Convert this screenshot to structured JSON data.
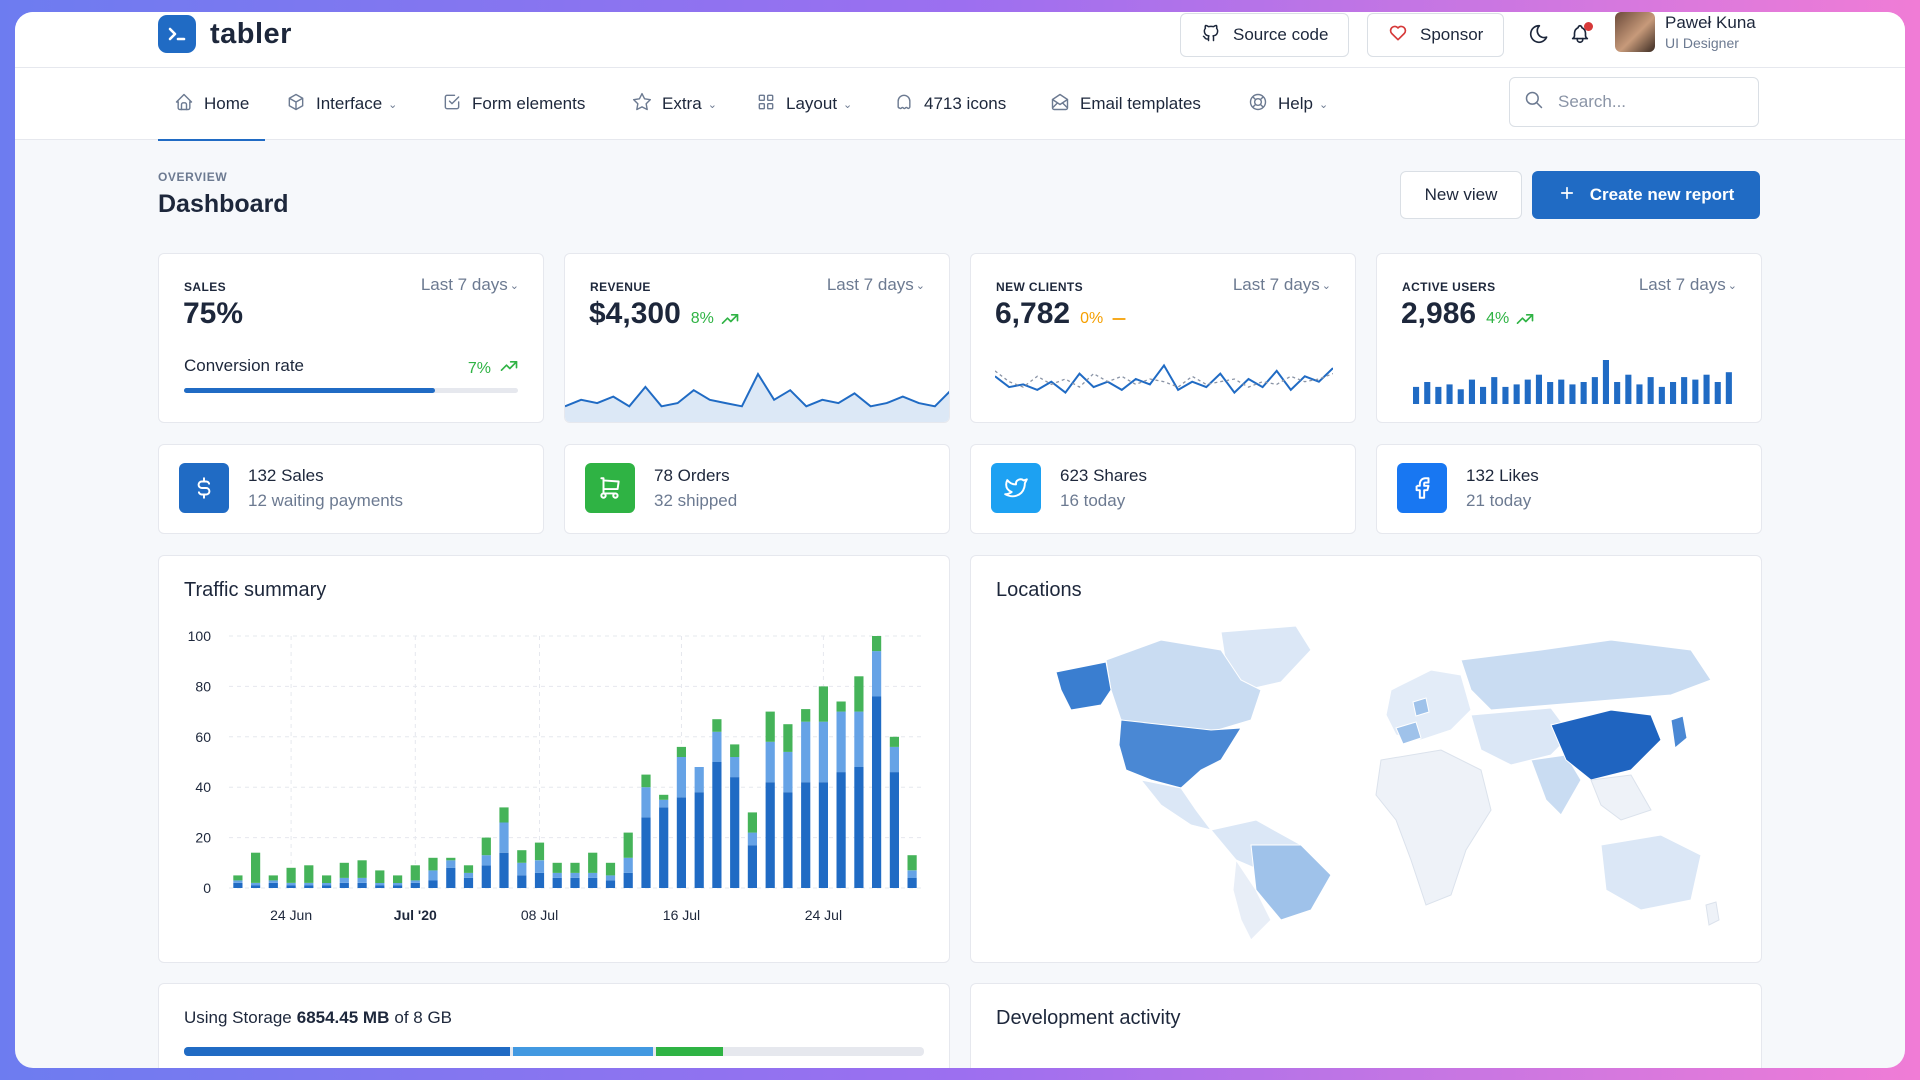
{
  "header": {
    "logo_text": "tabler",
    "source_code_label": "Source code",
    "sponsor_label": "Sponsor",
    "user_name": "Paweł Kuna",
    "user_role": "UI Designer"
  },
  "nav": {
    "items": [
      {
        "label": "Home",
        "icon": "home-icon"
      },
      {
        "label": "Interface",
        "icon": "package-icon"
      },
      {
        "label": "Form elements",
        "icon": "checkbox-icon"
      },
      {
        "label": "Extra",
        "icon": "star-icon"
      },
      {
        "label": "Layout",
        "icon": "layout-grid-icon"
      },
      {
        "label": "4713 icons",
        "icon": "ghost-icon"
      },
      {
        "label": "Email templates",
        "icon": "mail-opened-icon"
      },
      {
        "label": "Help",
        "icon": "lifebuoy-icon"
      }
    ],
    "search_placeholder": "Search..."
  },
  "page": {
    "pretitle": "OVERVIEW",
    "title": "Dashboard",
    "new_view_label": "New view",
    "create_report_label": "Create new report"
  },
  "kpis": [
    {
      "label": "SALES",
      "range": "Last 7 days",
      "value": "75%",
      "sub_label": "Conversion rate",
      "sub_value": "7%",
      "progress": 0.75
    },
    {
      "label": "REVENUE",
      "range": "Last 7 days",
      "value": "$4,300",
      "trend": "8%"
    },
    {
      "label": "NEW CLIENTS",
      "range": "Last 7 days",
      "value": "6,782",
      "trend": "0%"
    },
    {
      "label": "ACTIVE USERS",
      "range": "Last 7 days",
      "value": "2,986",
      "trend": "4%"
    }
  ],
  "mini_stats": [
    {
      "line1": "132 Sales",
      "line2": "12 waiting payments",
      "icon": "currency-dollar-icon",
      "color": "#206bc4"
    },
    {
      "line1": "78 Orders",
      "line2": "32 shipped",
      "icon": "shopping-cart-icon",
      "color": "#2fb344"
    },
    {
      "line1": "623 Shares",
      "line2": "16 today",
      "icon": "twitter-icon",
      "color": "#1da1f2"
    },
    {
      "line1": "132 Likes",
      "line2": "21 today",
      "icon": "facebook-icon",
      "color": "#1877f2"
    }
  ],
  "traffic": {
    "title": "Traffic summary"
  },
  "locations": {
    "title": "Locations"
  },
  "storage": {
    "prefix": "Using Storage",
    "used": "6854.45 MB",
    "of_text": "of 8 GB",
    "segments": [
      {
        "fraction": 0.44,
        "color": "#206bc4"
      },
      {
        "fraction": 0.19,
        "color": "#4299e1"
      },
      {
        "fraction": 0.09,
        "color": "#2fb344"
      }
    ]
  },
  "dev_activity": {
    "title": "Development activity"
  },
  "colors": {
    "primary": "#206bc4",
    "success": "#2fb344",
    "warning": "#f59f00",
    "danger": "#d63939"
  },
  "chart_data": [
    {
      "type": "bar",
      "title": "Traffic summary",
      "stacked": true,
      "x_tick_labels": [
        "24 Jun",
        "Jul '20",
        "08 Jul",
        "16 Jul",
        "24 Jul"
      ],
      "ylim": [
        0,
        100
      ],
      "y_ticks": [
        0,
        20,
        40,
        60,
        80,
        100
      ],
      "grid": true,
      "series": [
        {
          "color": "#206bc4",
          "values": [
            2,
            1,
            2,
            1,
            1,
            1,
            2,
            2,
            1,
            1,
            2,
            3,
            8,
            4,
            9,
            14,
            5,
            6,
            4,
            4,
            4,
            3,
            6,
            28,
            32,
            36,
            38,
            50,
            44,
            17,
            42,
            38,
            42,
            42,
            46,
            48,
            76,
            46,
            4
          ]
        },
        {
          "color": "#66a3e6",
          "values": [
            1,
            1,
            1,
            1,
            1,
            1,
            2,
            2,
            1,
            1,
            1,
            4,
            3,
            2,
            4,
            12,
            5,
            5,
            2,
            2,
            2,
            2,
            6,
            12,
            3,
            16,
            10,
            12,
            8,
            5,
            16,
            16,
            24,
            24,
            24,
            22,
            18,
            10,
            3
          ]
        },
        {
          "color": "#45b359",
          "values": [
            2,
            12,
            2,
            6,
            7,
            3,
            6,
            7,
            5,
            3,
            6,
            5,
            1,
            3,
            7,
            6,
            5,
            7,
            4,
            4,
            8,
            5,
            10,
            5,
            2,
            4,
            0,
            5,
            5,
            8,
            12,
            11,
            5,
            14,
            4,
            14,
            6,
            4,
            6
          ]
        }
      ]
    },
    {
      "type": "line",
      "title": "Revenue",
      "values": [
        3,
        5,
        4,
        6,
        3,
        9,
        3,
        4,
        8,
        5,
        4,
        3,
        13,
        5,
        8,
        3,
        5,
        4,
        7,
        3,
        4,
        6,
        4,
        3,
        8
      ]
    },
    {
      "type": "line",
      "title": "New clients",
      "series": [
        {
          "style": "solid",
          "values": [
            8,
            4,
            5,
            3,
            6,
            2,
            9,
            4,
            6,
            3,
            7,
            5,
            12,
            3,
            6,
            4,
            9,
            2,
            7,
            4,
            10,
            3,
            8,
            6,
            11
          ]
        },
        {
          "style": "dashed",
          "values": [
            10,
            6,
            4,
            8,
            5,
            7,
            4,
            9,
            6,
            8,
            5,
            7,
            6,
            4,
            8,
            5,
            6,
            7,
            4,
            6,
            5,
            8,
            6,
            7,
            9
          ]
        }
      ]
    },
    {
      "type": "bar",
      "title": "Active users",
      "values": [
        14,
        18,
        14,
        16,
        12,
        20,
        14,
        22,
        14,
        16,
        20,
        24,
        18,
        20,
        16,
        18,
        22,
        36,
        18,
        24,
        16,
        22,
        14,
        18,
        22,
        20,
        24,
        18,
        26
      ]
    }
  ]
}
